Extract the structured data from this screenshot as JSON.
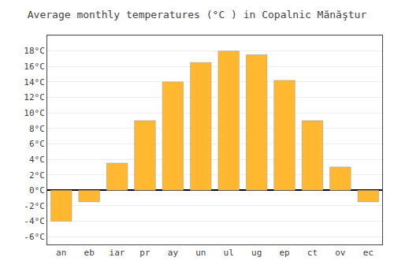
{
  "chart_data": {
    "type": "bar",
    "title": "Average monthly temperatures (°C ) in Copalnic Mănăştur",
    "categories": [
      "an",
      "eb",
      "iar",
      "pr",
      "ay",
      "un",
      "ul",
      "ug",
      "ep",
      "ct",
      "ov",
      "ec"
    ],
    "values": [
      -4.0,
      -1.5,
      3.5,
      9.0,
      14.0,
      16.5,
      18.0,
      17.5,
      14.2,
      9.0,
      3.0,
      -1.5
    ],
    "color": "#FFB830",
    "ylim": [
      -7,
      20
    ],
    "yticks": [
      {
        "value": -6,
        "label": "-6°C"
      },
      {
        "value": -4,
        "label": "-4°C"
      },
      {
        "value": -2,
        "label": "-2°C"
      },
      {
        "value": 0,
        "label": "0°C"
      },
      {
        "value": 2,
        "label": "2°C"
      },
      {
        "value": 4,
        "label": "4°C"
      },
      {
        "value": 6,
        "label": "6°C"
      },
      {
        "value": 8,
        "label": "8°C"
      },
      {
        "value": 10,
        "label": "10°C"
      },
      {
        "value": 12,
        "label": "12°C"
      },
      {
        "value": 14,
        "label": "14°C"
      },
      {
        "value": 16,
        "label": "16°C"
      },
      {
        "value": 18,
        "label": "18°C"
      }
    ],
    "grid": true
  }
}
